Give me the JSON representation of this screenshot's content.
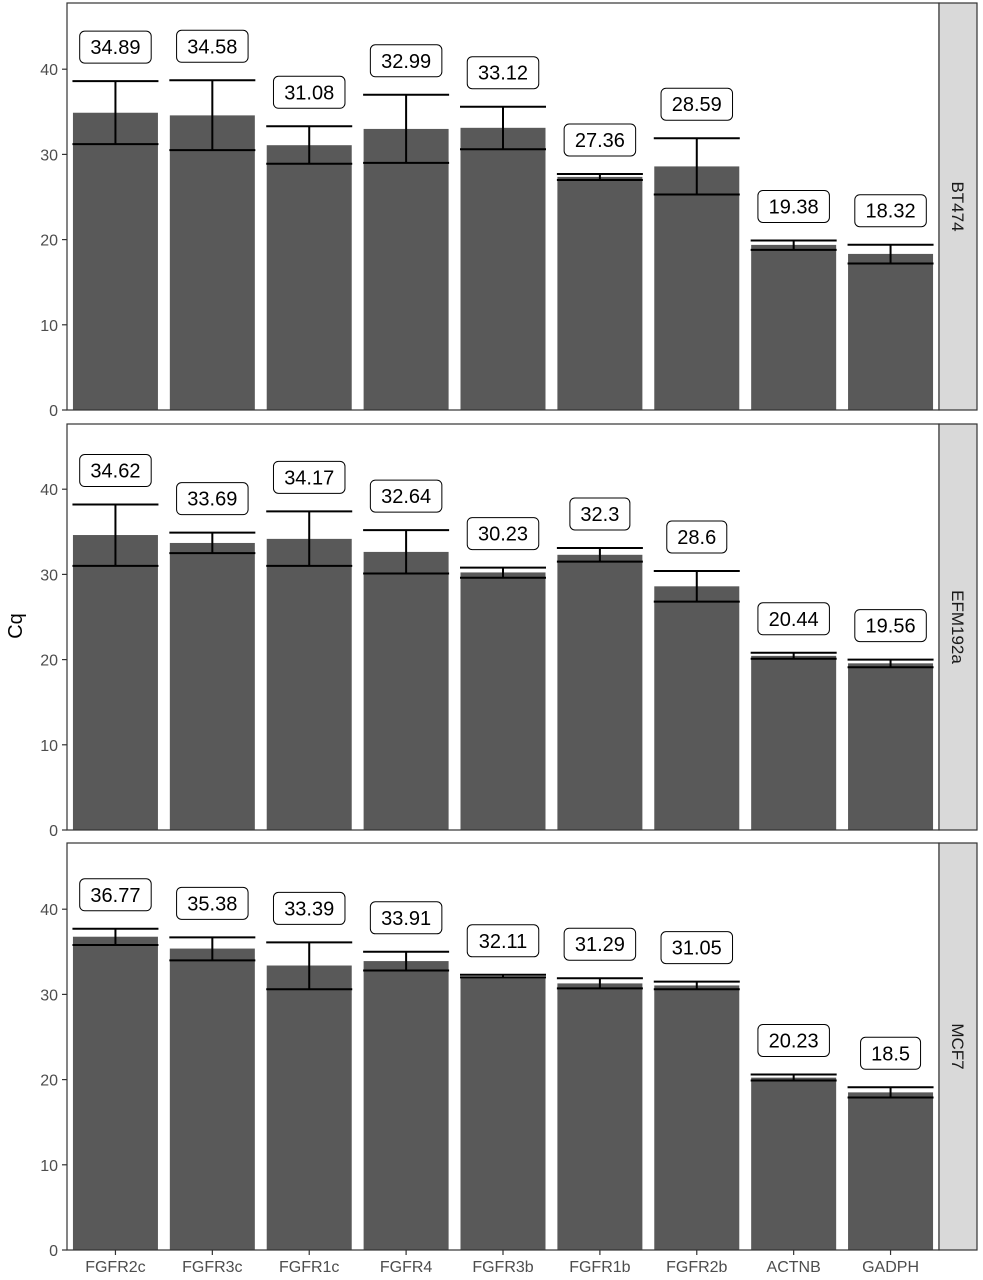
{
  "chart_data": {
    "type": "bar",
    "ylabel": "Cq",
    "xlabel": "",
    "ylim": [
      0,
      45
    ],
    "yticks": [
      0,
      10,
      20,
      30,
      40
    ],
    "categories": [
      "FGFR2c",
      "FGFR3c",
      "FGFR1c",
      "FGFR4",
      "FGFR3b",
      "FGFR1b",
      "FGFR2b",
      "ACTNB",
      "GADPH"
    ],
    "grid": false,
    "colors": {
      "bar": "#595959",
      "strip": "#d9d9d9",
      "frame": "#333333",
      "errorbar": "#000000"
    },
    "panels": [
      {
        "name": "BT474",
        "values": [
          34.89,
          34.58,
          31.08,
          32.99,
          33.12,
          27.36,
          28.59,
          19.38,
          18.32
        ],
        "labels": [
          "34.89",
          "34.58",
          "31.08",
          "32.99",
          "33.12",
          "27.36",
          "28.59",
          "19.38",
          "18.32"
        ],
        "error_low": [
          31.2,
          30.5,
          28.9,
          29.0,
          30.6,
          27.0,
          25.3,
          18.8,
          17.2
        ],
        "error_high": [
          38.6,
          38.7,
          33.3,
          37.0,
          35.6,
          27.7,
          31.9,
          19.9,
          19.4
        ]
      },
      {
        "name": "EFM192a",
        "values": [
          34.62,
          33.69,
          34.17,
          32.64,
          30.23,
          32.3,
          28.6,
          20.44,
          19.56
        ],
        "labels": [
          "34.62",
          "33.69",
          "34.17",
          "32.64",
          "30.23",
          "32.3",
          "28.6",
          "20.44",
          "19.56"
        ],
        "error_low": [
          31.0,
          32.5,
          31.0,
          30.1,
          29.6,
          31.5,
          26.8,
          20.1,
          19.1
        ],
        "error_high": [
          38.2,
          34.9,
          37.4,
          35.2,
          30.8,
          33.1,
          30.4,
          20.8,
          20.0
        ]
      },
      {
        "name": "MCF7",
        "values": [
          36.77,
          35.38,
          33.39,
          33.91,
          32.11,
          31.29,
          31.05,
          20.23,
          18.5
        ],
        "labels": [
          "36.77",
          "35.38",
          "33.39",
          "33.91",
          "32.11",
          "31.29",
          "31.05",
          "20.23",
          "18.5"
        ],
        "error_low": [
          35.8,
          34.0,
          30.6,
          32.8,
          32.0,
          30.7,
          30.6,
          19.9,
          17.9
        ],
        "error_high": [
          37.7,
          36.7,
          36.1,
          35.0,
          32.3,
          31.9,
          31.5,
          20.6,
          19.1
        ]
      }
    ]
  }
}
